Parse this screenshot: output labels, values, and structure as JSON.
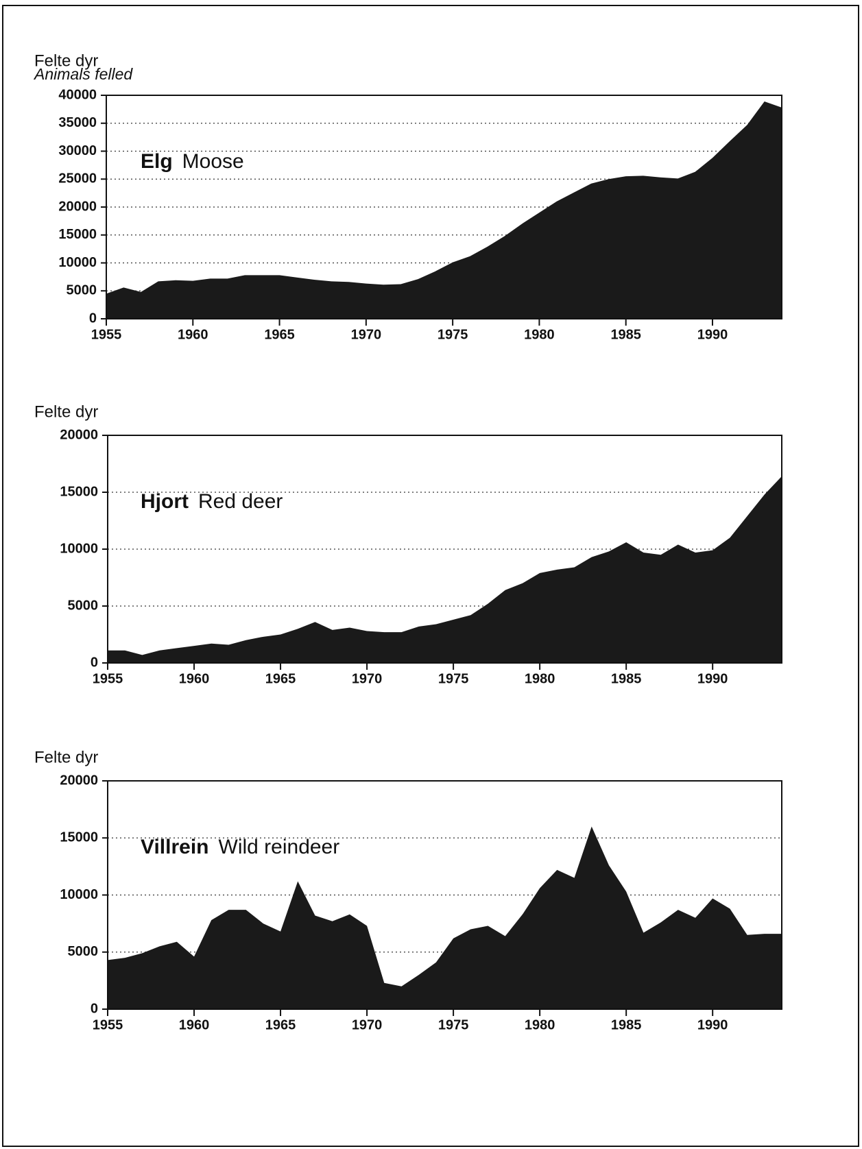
{
  "chart_data": [
    {
      "type": "area",
      "y_label": "Felte dyr",
      "y_label_en": "Animals felled",
      "annotation": {
        "bold": "Elg",
        "text": "Moose"
      },
      "color": "#1a1a1a",
      "grid": true,
      "x": [
        1955,
        1956,
        1957,
        1958,
        1959,
        1960,
        1961,
        1962,
        1963,
        1964,
        1965,
        1966,
        1967,
        1968,
        1969,
        1970,
        1971,
        1972,
        1973,
        1974,
        1975,
        1976,
        1977,
        1978,
        1979,
        1980,
        1981,
        1982,
        1983,
        1984,
        1985,
        1986,
        1987,
        1988,
        1989,
        1990,
        1991,
        1992,
        1993,
        1994
      ],
      "values": [
        4500,
        5600,
        4800,
        6700,
        6900,
        6800,
        7200,
        7200,
        7800,
        7800,
        7800,
        7400,
        7000,
        6700,
        6600,
        6300,
        6100,
        6200,
        7100,
        8500,
        10100,
        11200,
        12900,
        14800,
        17000,
        19000,
        21000,
        22600,
        24200,
        25000,
        25500,
        25600,
        25300,
        25100,
        26300,
        28800,
        31800,
        34700,
        38900,
        37800
      ],
      "xlim": [
        1955,
        1994
      ],
      "xticks": [
        1955,
        1960,
        1965,
        1970,
        1975,
        1980,
        1985,
        1990
      ],
      "ylim": [
        0,
        40000
      ],
      "yticks": [
        0,
        5000,
        10000,
        15000,
        20000,
        25000,
        30000,
        35000,
        40000
      ]
    },
    {
      "type": "area",
      "y_label": "Felte dyr",
      "annotation": {
        "bold": "Hjort",
        "text": "Red deer"
      },
      "color": "#1a1a1a",
      "grid": true,
      "x": [
        1955,
        1956,
        1957,
        1958,
        1959,
        1960,
        1961,
        1962,
        1963,
        1964,
        1965,
        1966,
        1967,
        1968,
        1969,
        1970,
        1971,
        1972,
        1973,
        1974,
        1975,
        1976,
        1977,
        1978,
        1979,
        1980,
        1981,
        1982,
        1983,
        1984,
        1985,
        1986,
        1987,
        1988,
        1989,
        1990,
        1991,
        1992,
        1993,
        1994
      ],
      "values": [
        1100,
        1100,
        700,
        1100,
        1300,
        1500,
        1700,
        1600,
        2000,
        2300,
        2500,
        3000,
        3600,
        2900,
        3100,
        2800,
        2700,
        2700,
        3200,
        3400,
        3800,
        4200,
        5200,
        6400,
        7000,
        7900,
        8200,
        8400,
        9300,
        9800,
        10600,
        9700,
        9500,
        10400,
        9700,
        9900,
        11000,
        12900,
        14800,
        16400
      ],
      "xlim": [
        1955,
        1994
      ],
      "xticks": [
        1955,
        1960,
        1965,
        1970,
        1975,
        1980,
        1985,
        1990
      ],
      "ylim": [
        0,
        20000
      ],
      "yticks": [
        0,
        5000,
        10000,
        15000,
        20000
      ]
    },
    {
      "type": "area",
      "y_label": "Felte dyr",
      "annotation": {
        "bold": "Villrein",
        "text": "Wild reindeer"
      },
      "color": "#1a1a1a",
      "grid": true,
      "x": [
        1955,
        1956,
        1957,
        1958,
        1959,
        1960,
        1961,
        1962,
        1963,
        1964,
        1965,
        1966,
        1967,
        1968,
        1969,
        1970,
        1971,
        1972,
        1973,
        1974,
        1975,
        1976,
        1977,
        1978,
        1979,
        1980,
        1981,
        1982,
        1983,
        1984,
        1985,
        1986,
        1987,
        1988,
        1989,
        1990,
        1991,
        1992,
        1993,
        1994
      ],
      "values": [
        4300,
        4500,
        4900,
        5500,
        5900,
        4600,
        7800,
        8700,
        8700,
        7500,
        6800,
        11200,
        8200,
        7700,
        8300,
        7300,
        2300,
        2000,
        3000,
        4100,
        6200,
        7000,
        7300,
        6400,
        8300,
        10600,
        12200,
        11500,
        16000,
        12600,
        10300,
        6700,
        7600,
        8700,
        8000,
        9700,
        8800,
        6500,
        6600,
        6600
      ],
      "xlim": [
        1955,
        1994
      ],
      "xticks": [
        1955,
        1960,
        1965,
        1970,
        1975,
        1980,
        1985,
        1990
      ],
      "ylim": [
        0,
        20000
      ],
      "yticks": [
        0,
        5000,
        10000,
        15000,
        20000
      ]
    }
  ]
}
